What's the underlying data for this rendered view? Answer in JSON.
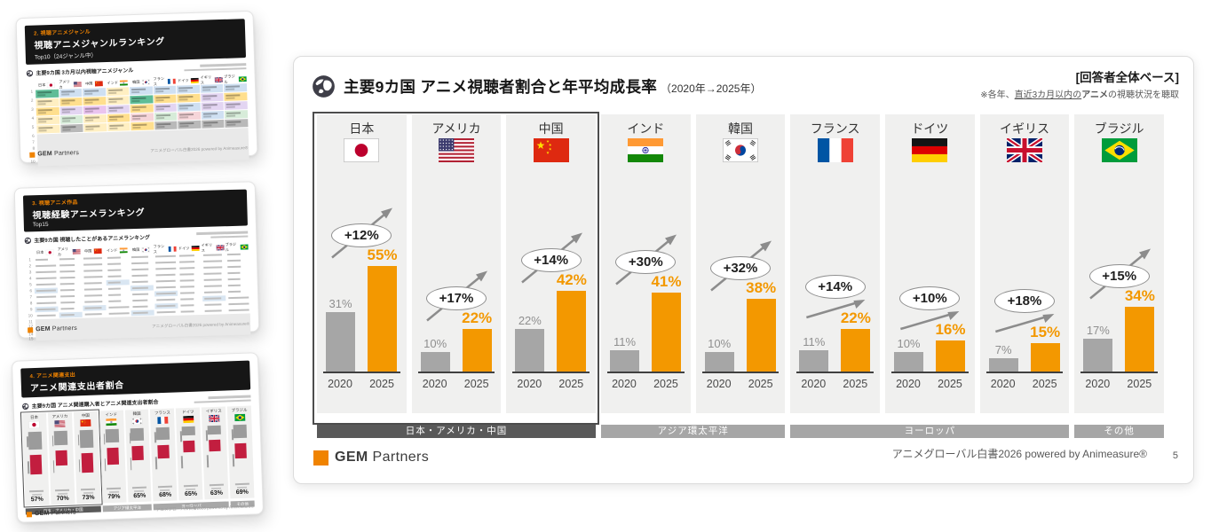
{
  "colors": {
    "accent_orange": "#f39800",
    "bar_gray": "#a6a6a6",
    "group_dark": "#595959",
    "group_gray": "#a6a6a6",
    "thumb_header_bg": "#161616",
    "thumb_accent": "#f08300",
    "spend_red": "#c21e3f"
  },
  "main_slide": {
    "title": "主要9カ国 アニメ視聴者割合と年平均成長率",
    "title_suffix": "（2020年→2025年）",
    "note_title": "[回答者全体ベース]",
    "note_prefix": "※各年、",
    "note_underline": "直近3カ月以内の",
    "note_bold": "アニメ",
    "note_suffix": "の視聴状況を聴取",
    "brand_bold": "GEM",
    "brand_rest": "Partners",
    "footer_right": "アニメグローバル白書2026 powered by Animeasure®",
    "page_number": "5"
  },
  "chart_data": {
    "type": "bar",
    "title": "主要9カ国 アニメ視聴者割合と年平均成長率（2020年→2025年）",
    "unit": "%",
    "categories": [
      "日本",
      "アメリカ",
      "中国",
      "インド",
      "韓国",
      "フランス",
      "ドイツ",
      "イギリス",
      "ブラジル"
    ],
    "flags": [
      "jp",
      "us",
      "cn",
      "in",
      "kr",
      "fr",
      "de",
      "gb",
      "br"
    ],
    "x_tick_labels": [
      "2020",
      "2025"
    ],
    "series": [
      {
        "name": "2020",
        "color": "#a6a6a6",
        "values": [
          31,
          10,
          22,
          11,
          10,
          11,
          10,
          7,
          17
        ]
      },
      {
        "name": "2025",
        "color": "#f39800",
        "values": [
          55,
          22,
          42,
          41,
          38,
          22,
          16,
          15,
          34
        ]
      }
    ],
    "growth_labels": [
      "+12%",
      "+17%",
      "+14%",
      "+30%",
      "+32%",
      "+14%",
      "+10%",
      "+18%",
      "+15%"
    ],
    "arrow_styles": [
      "through",
      "through",
      "through",
      "through",
      "through",
      "below",
      "below",
      "below",
      "through"
    ],
    "ylim": [
      0,
      60
    ],
    "grid": false,
    "legend_position": "none",
    "groups": [
      {
        "label": "日本・アメリカ・中国",
        "span": 3,
        "dark": true
      },
      {
        "label": "アジア環太平洋",
        "span": 2,
        "dark": false
      },
      {
        "label": "ヨーロッパ",
        "span": 3,
        "dark": false
      },
      {
        "label": "その他",
        "span": 1,
        "dark": false
      }
    ]
  },
  "thumbnails": {
    "brand_bold": "GEM",
    "brand_rest": "Partners",
    "footer_right": "アニメグローバル白書2026 powered by Animeasure®",
    "items": [
      {
        "tag": "2. 視聴アニメジャンル",
        "title": "視聴アニメジャンルランキング",
        "subtitle": "Top10（24ジャンル中）",
        "caption": "主要9カ国 3カ月以内視聴アニメジャンル",
        "rows": 10,
        "cell_colors": [
          [
            "#5fbd97",
            "#cfe0f2",
            "#cfe0f2",
            "#ffefc2",
            "#cfe0f2",
            "#cfe0f2",
            "#cfe0f2",
            "#cfe0f2",
            "#cfe0f2"
          ],
          [
            "#ffefc2",
            "#ffdf8e",
            "#ffdf8e",
            "#ffefc2",
            "#5fbd97",
            "#ffdf8e",
            "#ffdf8e",
            "#e3d5f2",
            "#ffdf8e"
          ],
          [
            "#ffdf8e",
            "#e3d5f2",
            "#eac4ef",
            "#e3d5f2",
            "#ffdf8e",
            "#e3d5f2",
            "#cfe0f2",
            "#e3d5f2",
            "#e3d5f2"
          ],
          [
            "#ffefc2",
            "#d7ecd9",
            "#ffefc2",
            "#ffdf8e",
            "#f6d5d9",
            "#d7ecd9",
            "#f6d5d9",
            "#cfe0f2",
            "#d7ecd9"
          ],
          [
            "#ffefc2",
            "#b9b9b9",
            "#ffefc2",
            "#ffefc2",
            "#ffdf8e",
            "#b9b9b9",
            "#b9b9b9",
            "#b9b9b9",
            "#b9b9b9"
          ]
        ]
      },
      {
        "tag": "3. 視聴アニメ作品",
        "title": "視聴経験アニメランキング",
        "subtitle": "Top15",
        "caption": "主要9カ国 視聴したことがあるアニメランキング",
        "rows": 15,
        "highlight_cells": [
          [
            4,
            3
          ],
          [
            5,
            0
          ],
          [
            5,
            4
          ],
          [
            6,
            5
          ],
          [
            7,
            7
          ],
          [
            8,
            0
          ],
          [
            8,
            2
          ],
          [
            8,
            5
          ],
          [
            9,
            1
          ],
          [
            9,
            4
          ]
        ]
      },
      {
        "tag": "4. アニメ関連支出",
        "title": "アニメ関連支出者割合",
        "subtitle": "",
        "caption": "主要9カ国 アニメ関連購入者とアニメ関連支出者割合",
        "percents": [
          "57%",
          "70%",
          "73%",
          "79%",
          "65%",
          "68%",
          "65%",
          "63%",
          "69%"
        ],
        "gray_heights": [
          20,
          16,
          20,
          15,
          14,
          14,
          10,
          10,
          15
        ],
        "red_heights": [
          22,
          17,
          22,
          19,
          16,
          15,
          13,
          13,
          17
        ]
      }
    ]
  }
}
